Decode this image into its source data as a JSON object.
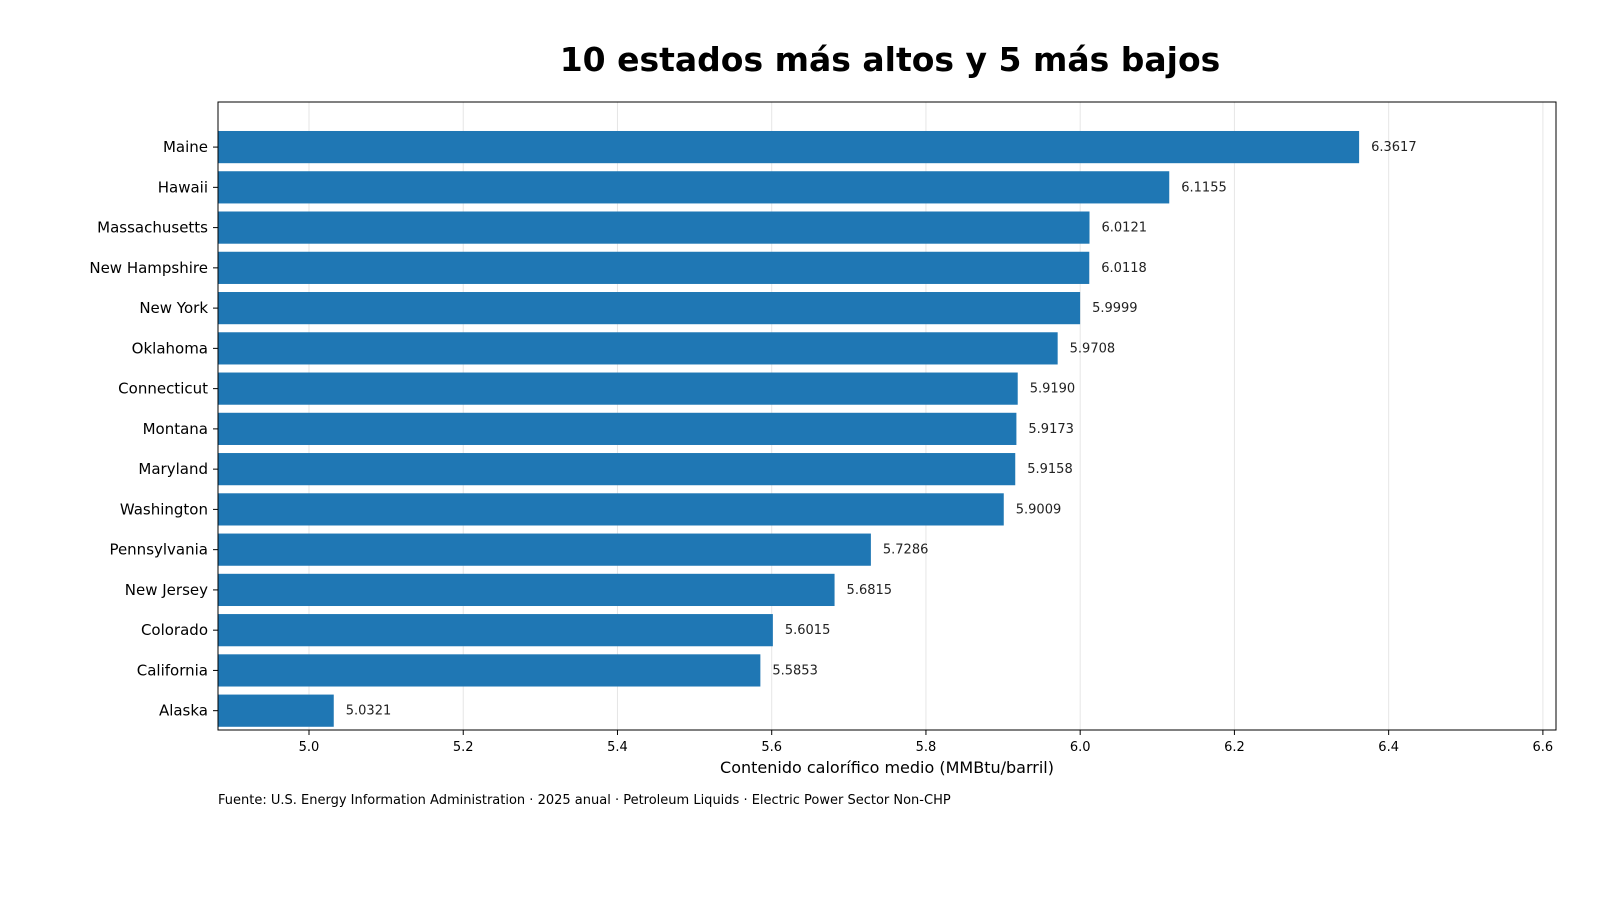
{
  "chart_data": {
    "type": "bar",
    "orientation": "horizontal",
    "title": "10 estados más altos y 5 más bajos",
    "xlabel": "Contenido calorífico medio (MMBtu/barril)",
    "ylabel": "",
    "categories": [
      "Maine",
      "Hawaii",
      "Massachusetts",
      "New Hampshire",
      "New York",
      "Oklahoma",
      "Connecticut",
      "Montana",
      "Maryland",
      "Washington",
      "Pennsylvania",
      "New Jersey",
      "Colorado",
      "California",
      "Alaska"
    ],
    "values": [
      6.3617,
      6.1155,
      6.0121,
      6.0118,
      5.9999,
      5.9708,
      5.919,
      5.9173,
      5.9158,
      5.9009,
      5.7286,
      5.6815,
      5.6015,
      5.5853,
      5.0321
    ],
    "value_labels": [
      "6.3617",
      "6.1155",
      "6.0121",
      "6.0118",
      "5.9999",
      "5.9708",
      "5.9190",
      "5.9173",
      "5.9158",
      "5.9009",
      "5.7286",
      "5.6815",
      "5.6015",
      "5.5853",
      "5.0321"
    ],
    "xlim": [
      4.882,
      6.617
    ],
    "xticks": [
      5.0,
      5.2,
      5.4,
      5.6,
      5.8,
      6.0,
      6.2,
      6.4,
      6.6
    ],
    "xtick_labels": [
      "5.0",
      "5.2",
      "5.4",
      "5.6",
      "5.8",
      "6.0",
      "6.2",
      "6.4",
      "6.6"
    ],
    "grid": "vertical",
    "bar_color": "#1f77b4",
    "source": "Fuente: U.S. Energy Information Administration · 2025 anual · Petroleum Liquids · Electric Power Sector Non-CHP"
  }
}
